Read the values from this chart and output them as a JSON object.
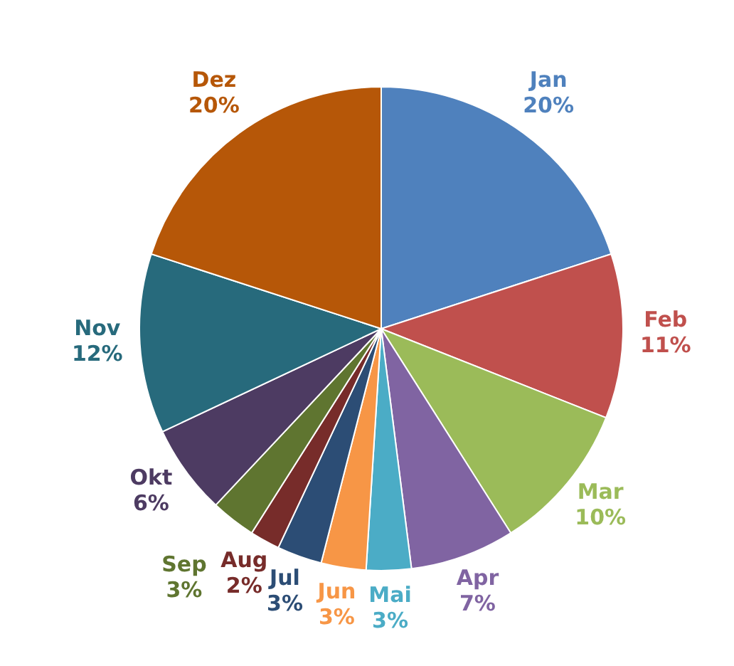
{
  "chart_data": {
    "type": "pie",
    "categories": [
      "Jan",
      "Feb",
      "Mar",
      "Apr",
      "Mai",
      "Jun",
      "Jul",
      "Aug",
      "Sep",
      "Okt",
      "Nov",
      "Dez"
    ],
    "values": [
      20,
      11,
      10,
      7,
      3,
      3,
      3,
      2,
      3,
      6,
      12,
      20
    ],
    "value_labels": [
      "20%",
      "11%",
      "10%",
      "7%",
      "3%",
      "3%",
      "3%",
      "2%",
      "3%",
      "6%",
      "12%",
      "20%"
    ],
    "colors": [
      "#4f81bd",
      "#c0504d",
      "#9bbb59",
      "#8064a2",
      "#4bacc6",
      "#f79646",
      "#2c4d75",
      "#772c2a",
      "#5f7530",
      "#4d3b62",
      "#276a7c",
      "#b65708"
    ],
    "legend": false
  }
}
